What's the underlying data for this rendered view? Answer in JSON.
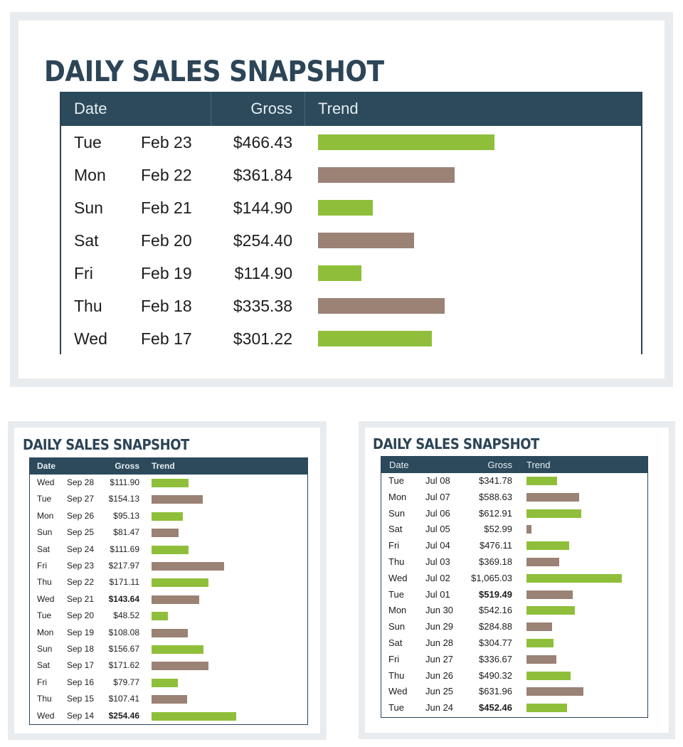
{
  "colors": {
    "green": "#8fbf3a",
    "taupe": "#9a8275",
    "header": "#2c4a5c",
    "title": "#2c4557"
  },
  "chart_data": [
    {
      "type": "table",
      "title": "DAILY SALES SNAPSHOT",
      "columns": [
        "Date",
        "Gross",
        "Trend"
      ],
      "bar_max": 466.43,
      "rows": [
        {
          "day": "Tue",
          "date": "Feb 23",
          "gross": "$466.43",
          "value": 466.43,
          "color": "green"
        },
        {
          "day": "Mon",
          "date": "Feb 22",
          "gross": "$361.84",
          "value": 361.84,
          "color": "taupe"
        },
        {
          "day": "Sun",
          "date": "Feb 21",
          "gross": "$144.90",
          "value": 144.9,
          "color": "green"
        },
        {
          "day": "Sat",
          "date": "Feb 20",
          "gross": "$254.40",
          "value": 254.4,
          "color": "taupe"
        },
        {
          "day": "Fri",
          "date": "Feb 19",
          "gross": "$114.90",
          "value": 114.9,
          "color": "green"
        },
        {
          "day": "Thu",
          "date": "Feb 18",
          "gross": "$335.38",
          "value": 335.38,
          "color": "taupe"
        },
        {
          "day": "Wed",
          "date": "Feb 17",
          "gross": "$301.22",
          "value": 301.22,
          "color": "green"
        }
      ]
    },
    {
      "type": "table",
      "title": "DAILY SALES SNAPSHOT",
      "columns": [
        "Date",
        "Gross",
        "Trend"
      ],
      "bar_max": 254.46,
      "rows": [
        {
          "day": "Wed",
          "date": "Sep 28",
          "gross": "$111.90",
          "value": 111.9,
          "color": "green"
        },
        {
          "day": "Tue",
          "date": "Sep 27",
          "gross": "$154.13",
          "value": 154.13,
          "color": "taupe"
        },
        {
          "day": "Mon",
          "date": "Sep 26",
          "gross": "$95.13",
          "value": 95.13,
          "color": "green"
        },
        {
          "day": "Sun",
          "date": "Sep 25",
          "gross": "$81.47",
          "value": 81.47,
          "color": "taupe"
        },
        {
          "day": "Sat",
          "date": "Sep 24",
          "gross": "$111.69",
          "value": 111.69,
          "color": "green"
        },
        {
          "day": "Fri",
          "date": "Sep 23",
          "gross": "$217.97",
          "value": 217.97,
          "color": "taupe"
        },
        {
          "day": "Thu",
          "date": "Sep 22",
          "gross": "$171.11",
          "value": 171.11,
          "color": "green"
        },
        {
          "day": "Wed",
          "date": "Sep 21",
          "gross": "$143.64",
          "value": 143.64,
          "color": "taupe",
          "bold": true
        },
        {
          "day": "Tue",
          "date": "Sep 20",
          "gross": "$48.52",
          "value": 48.52,
          "color": "green"
        },
        {
          "day": "Mon",
          "date": "Sep 19",
          "gross": "$108.08",
          "value": 108.08,
          "color": "taupe"
        },
        {
          "day": "Sun",
          "date": "Sep 18",
          "gross": "$156.67",
          "value": 156.67,
          "color": "green"
        },
        {
          "day": "Sat",
          "date": "Sep 17",
          "gross": "$171.62",
          "value": 171.62,
          "color": "taupe"
        },
        {
          "day": "Fri",
          "date": "Sep 16",
          "gross": "$79.77",
          "value": 79.77,
          "color": "green"
        },
        {
          "day": "Thu",
          "date": "Sep 15",
          "gross": "$107.41",
          "value": 107.41,
          "color": "taupe"
        },
        {
          "day": "Wed",
          "date": "Sep 14",
          "gross": "$254.46",
          "value": 254.46,
          "color": "green",
          "bold": true
        }
      ]
    },
    {
      "type": "table",
      "title": "DAILY SALES SNAPSHOT",
      "columns": [
        "Date",
        "Gross",
        "Trend"
      ],
      "bar_max": 1065.03,
      "rows": [
        {
          "day": "Tue",
          "date": "Jul 08",
          "gross": "$341.78",
          "value": 341.78,
          "color": "green"
        },
        {
          "day": "Mon",
          "date": "Jul 07",
          "gross": "$588.63",
          "value": 588.63,
          "color": "taupe"
        },
        {
          "day": "Sun",
          "date": "Jul 06",
          "gross": "$612.91",
          "value": 612.91,
          "color": "green"
        },
        {
          "day": "Sat",
          "date": "Jul 05",
          "gross": "$52.99",
          "value": 52.99,
          "color": "taupe"
        },
        {
          "day": "Fri",
          "date": "Jul 04",
          "gross": "$476.11",
          "value": 476.11,
          "color": "green"
        },
        {
          "day": "Thu",
          "date": "Jul 03",
          "gross": "$369.18",
          "value": 369.18,
          "color": "taupe"
        },
        {
          "day": "Wed",
          "date": "Jul 02",
          "gross": "$1,065.03",
          "value": 1065.03,
          "color": "green"
        },
        {
          "day": "Tue",
          "date": "Jul 01",
          "gross": "$519.49",
          "value": 519.49,
          "color": "taupe",
          "bold": true
        },
        {
          "day": "Mon",
          "date": "Jun 30",
          "gross": "$542.16",
          "value": 542.16,
          "color": "green"
        },
        {
          "day": "Sun",
          "date": "Jun 29",
          "gross": "$284.88",
          "value": 284.88,
          "color": "taupe"
        },
        {
          "day": "Sat",
          "date": "Jun 28",
          "gross": "$304.77",
          "value": 304.77,
          "color": "green"
        },
        {
          "day": "Fri",
          "date": "Jun 27",
          "gross": "$336.67",
          "value": 336.67,
          "color": "taupe"
        },
        {
          "day": "Thu",
          "date": "Jun 26",
          "gross": "$490.32",
          "value": 490.32,
          "color": "green"
        },
        {
          "day": "Wed",
          "date": "Jun 25",
          "gross": "$631.96",
          "value": 631.96,
          "color": "taupe"
        },
        {
          "day": "Tue",
          "date": "Jun 24",
          "gross": "$452.46",
          "value": 452.46,
          "color": "green",
          "bold": true
        }
      ]
    }
  ]
}
